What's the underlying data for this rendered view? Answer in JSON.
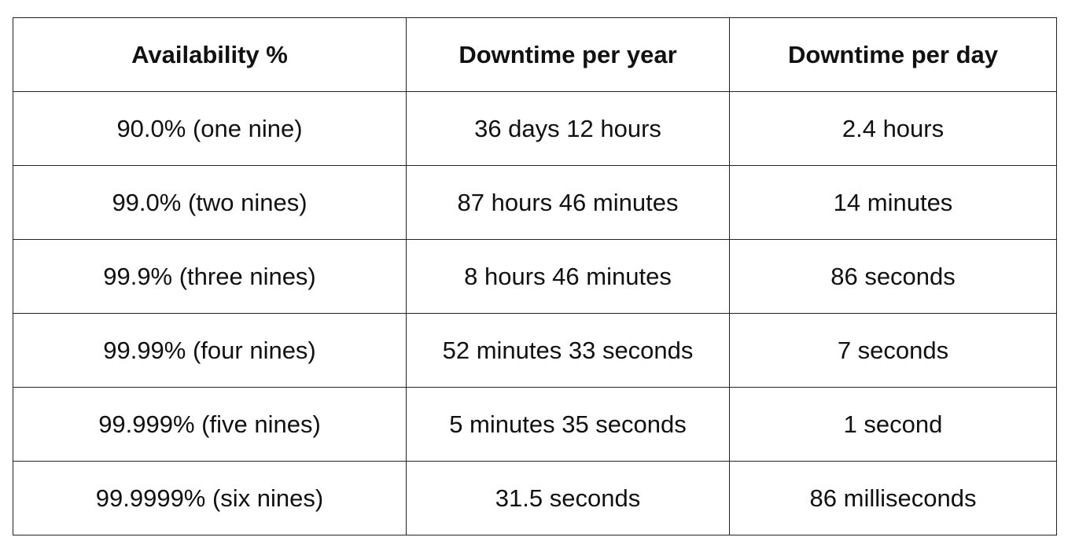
{
  "table": {
    "headers": [
      "Availability %",
      "Downtime per year",
      "Downtime per day"
    ],
    "rows": [
      [
        "90.0% (one nine)",
        "36 days 12 hours",
        "2.4 hours"
      ],
      [
        "99.0% (two nines)",
        "87 hours 46 minutes",
        "14 minutes"
      ],
      [
        "99.9% (three nines)",
        "8 hours 46 minutes",
        "86 seconds"
      ],
      [
        "99.99% (four nines)",
        "52 minutes 33 seconds",
        "7 seconds"
      ],
      [
        "99.999% (five nines)",
        "5 minutes 35 seconds",
        "1 second"
      ],
      [
        "99.9999% (six nines)",
        "31.5 seconds",
        "86 milliseconds"
      ]
    ]
  }
}
